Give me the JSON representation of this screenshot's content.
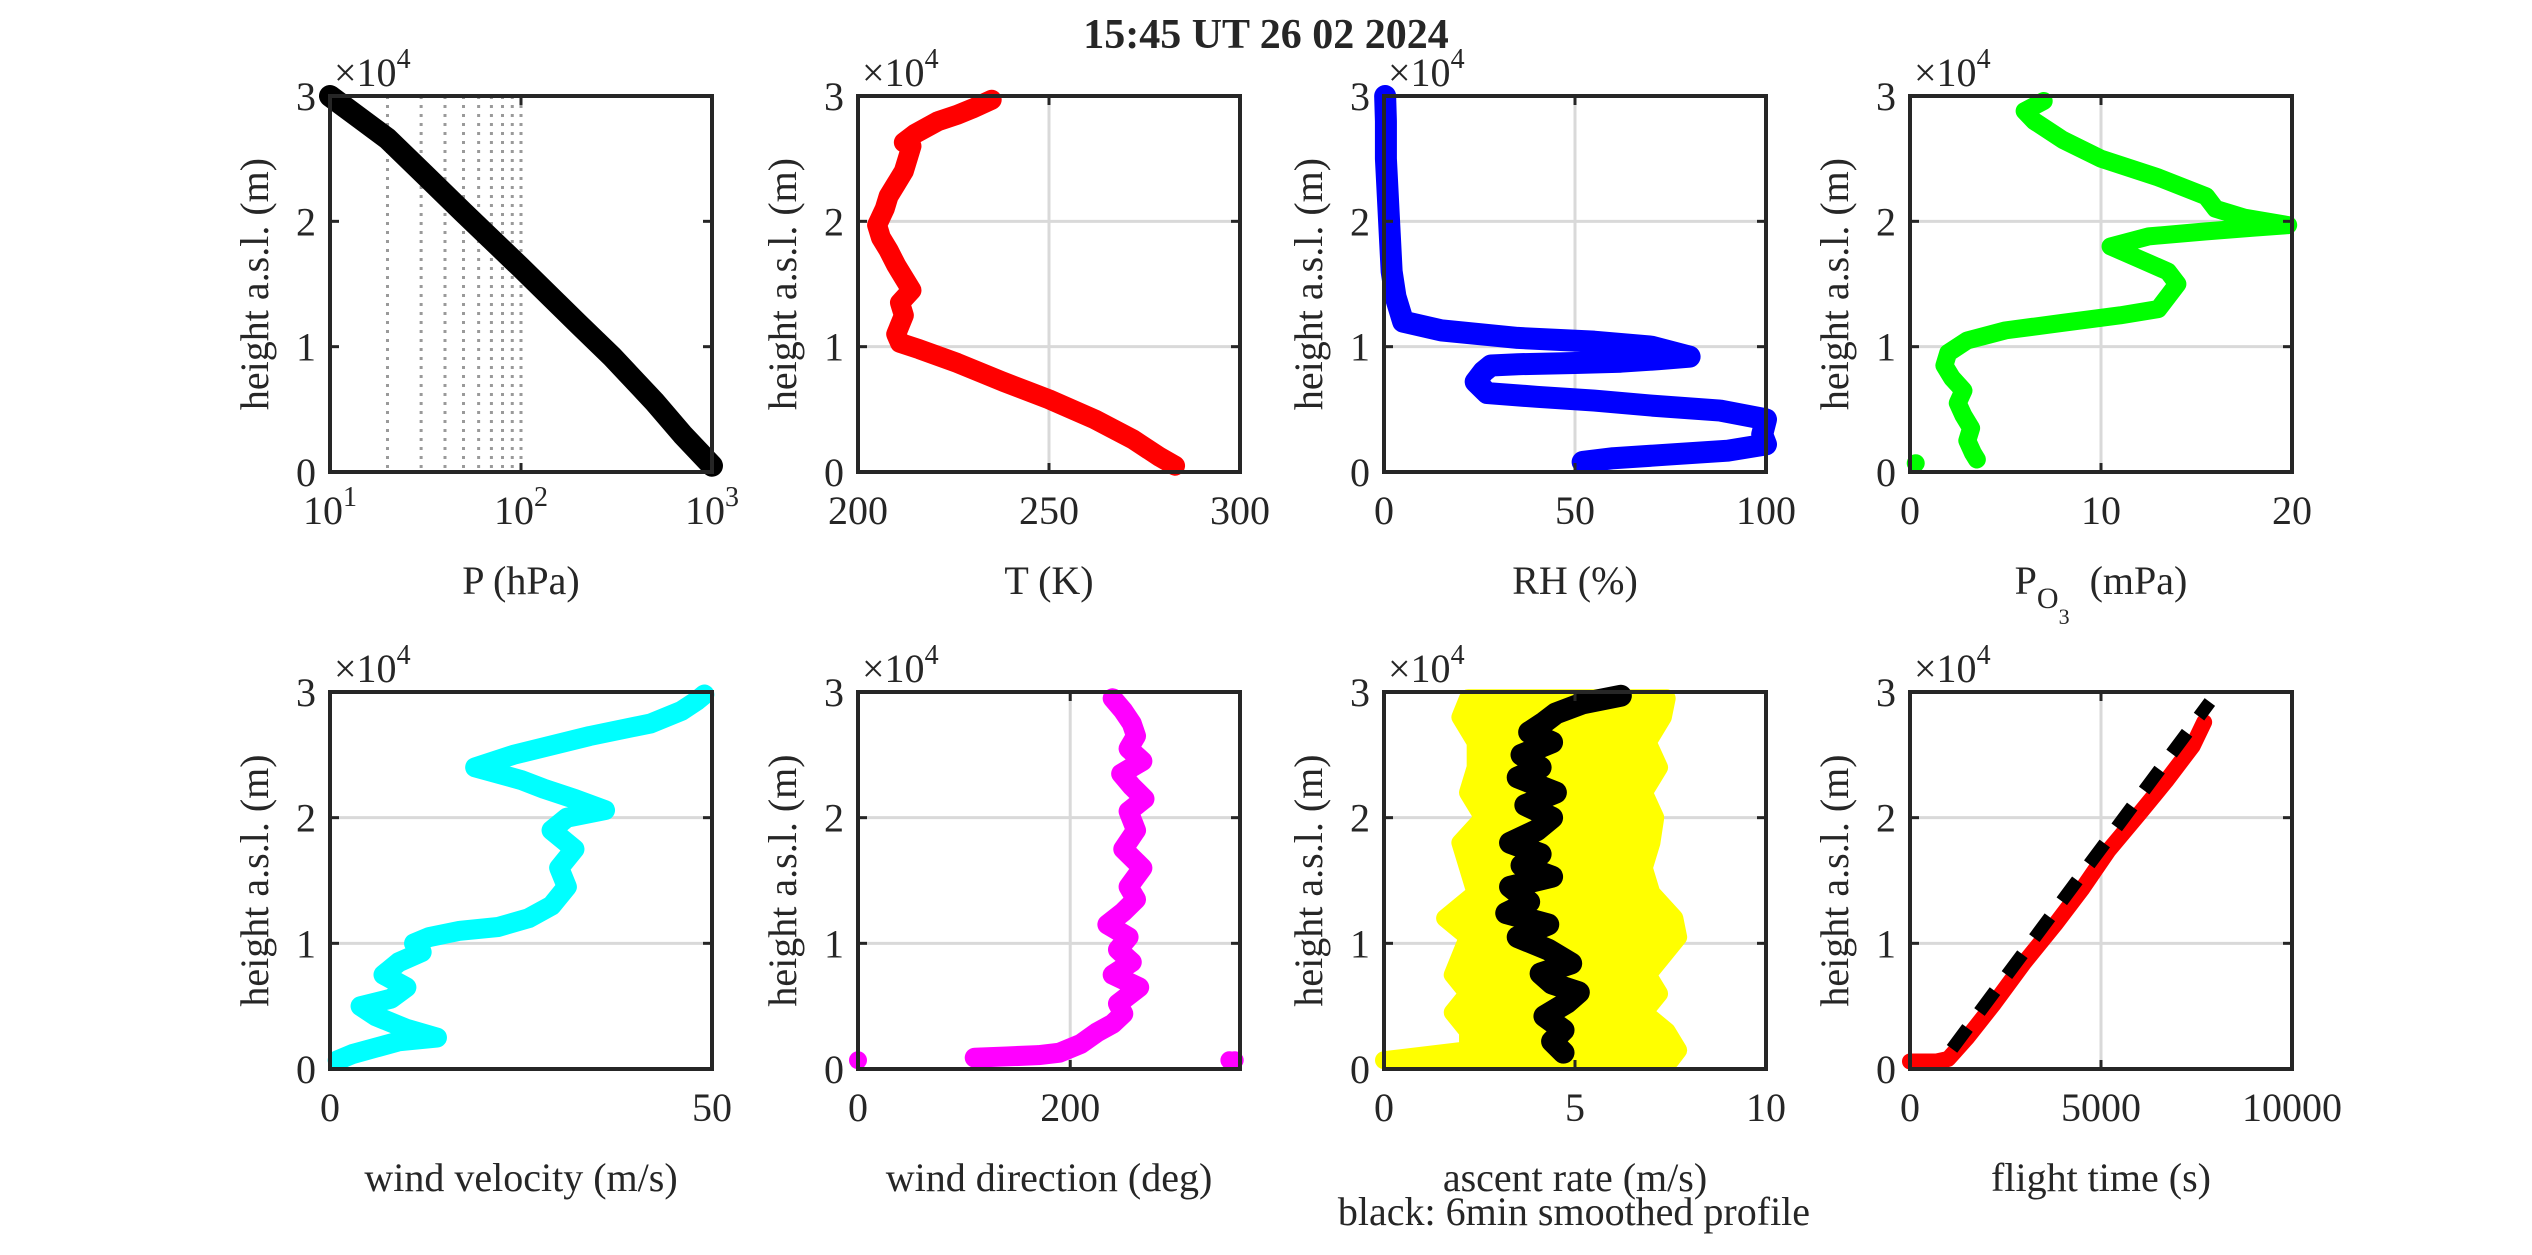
{
  "figure": {
    "title": "15:45 UT  26 02 2024",
    "footnote": "black: 6min smoothed profile"
  },
  "chart_data": [
    {
      "id": "pressure",
      "type": "line",
      "xlabel": "P (hPa)",
      "ylabel": "height a.s.l. (m)",
      "xscale": "log",
      "xlim": [
        10,
        1000
      ],
      "ylim": [
        0,
        30000
      ],
      "xticks": [
        10,
        100,
        1000
      ],
      "xtick_labels": [
        {
          "base": "10",
          "exp": "1"
        },
        {
          "base": "10",
          "exp": "2"
        },
        {
          "base": "10",
          "exp": "3"
        }
      ],
      "yticks": [
        0,
        10000,
        20000,
        30000
      ],
      "ytick_labels": [
        "0",
        "1",
        "2",
        "3"
      ],
      "y_exponent": "4",
      "grid": "log-dotted",
      "series": [
        {
          "color": "#000000",
          "kind": "line",
          "width": 22,
          "x": [
            1000,
            700,
            500,
            300,
            200,
            100,
            50,
            30,
            20,
            10
          ],
          "y": [
            500,
            3000,
            5600,
            9200,
            11800,
            16300,
            20700,
            24000,
            26600,
            30000
          ]
        }
      ]
    },
    {
      "id": "temperature",
      "type": "line",
      "xlabel": "T (K)",
      "ylabel": "height a.s.l. (m)",
      "xlim": [
        200,
        300
      ],
      "ylim": [
        0,
        30000
      ],
      "xticks": [
        200,
        250,
        300
      ],
      "xtick_labels": [
        "200",
        "250",
        "300"
      ],
      "yticks": [
        0,
        10000,
        20000,
        30000
      ],
      "ytick_labels": [
        "0",
        "1",
        "2",
        "3"
      ],
      "y_exponent": "4",
      "grid": "solid",
      "series": [
        {
          "color": "#ff0000",
          "kind": "line",
          "width": 20,
          "x": [
            283,
            279,
            272,
            262,
            250,
            238,
            226,
            216,
            211,
            210,
            212,
            211,
            214,
            212,
            210,
            208,
            206,
            205,
            207,
            208,
            210,
            212,
            213,
            214,
            212,
            215,
            221,
            226,
            230,
            235
          ],
          "y": [
            500,
            1200,
            2600,
            4200,
            5800,
            7200,
            8700,
            9800,
            10300,
            11000,
            12500,
            13500,
            14500,
            15500,
            16500,
            17700,
            18700,
            19700,
            21000,
            22000,
            23000,
            24000,
            25000,
            26000,
            26300,
            27000,
            28000,
            28500,
            29000,
            29700
          ]
        }
      ]
    },
    {
      "id": "humidity",
      "type": "line",
      "xlabel": "RH (%)",
      "ylabel": "height a.s.l. (m)",
      "xlim": [
        0,
        100
      ],
      "ylim": [
        0,
        30000
      ],
      "xticks": [
        0,
        50,
        100
      ],
      "xtick_labels": [
        "0",
        "50",
        "100"
      ],
      "yticks": [
        0,
        10000,
        20000,
        30000
      ],
      "ytick_labels": [
        "0",
        "1",
        "2",
        "3"
      ],
      "y_exponent": "4",
      "grid": "solid",
      "series": [
        {
          "color": "#0000ff",
          "kind": "line",
          "width": 22,
          "x": [
            52,
            60,
            75,
            90,
            100,
            99,
            100,
            88,
            70,
            55,
            40,
            27,
            24,
            26,
            28,
            35,
            50,
            62,
            72,
            80,
            70,
            55,
            35,
            15,
            5,
            3,
            2,
            1.5,
            1,
            0.5,
            0.5,
            0.3
          ],
          "y": [
            800,
            1100,
            1400,
            1700,
            2200,
            3000,
            4200,
            4900,
            5300,
            5700,
            6000,
            6300,
            7200,
            8000,
            8500,
            8600,
            8700,
            8800,
            9000,
            9200,
            10000,
            10400,
            10700,
            11300,
            12000,
            14000,
            16000,
            19000,
            22000,
            25000,
            28000,
            30000
          ]
        }
      ]
    },
    {
      "id": "ozone",
      "type": "line",
      "xlabel": {
        "main": "P",
        "sub": "O",
        "subsub": "3",
        "unit": "(mPa)"
      },
      "ylabel": "height a.s.l. (m)",
      "xlim": [
        0,
        20
      ],
      "ylim": [
        0,
        30000
      ],
      "xticks": [
        0,
        10,
        20
      ],
      "xtick_labels": [
        "0",
        "10",
        "20"
      ],
      "yticks": [
        0,
        10000,
        20000,
        30000
      ],
      "ytick_labels": [
        "0",
        "1",
        "2",
        "3"
      ],
      "y_exponent": "4",
      "grid": "solid",
      "series": [
        {
          "color": "#00ff00",
          "kind": "line",
          "width": 18,
          "x": [
            3.5,
            3.3,
            3.0,
            3.2,
            2.8,
            2.5,
            2.8,
            2.2,
            1.8,
            2.0,
            3.0,
            5.0,
            8.0,
            11.0,
            13.0,
            13.5,
            14.0,
            13.5,
            12.0,
            10.5,
            12.5,
            15.5,
            18.0,
            19.8,
            17.5,
            16.0,
            15.5,
            13.0,
            10.0,
            8.0,
            6.5,
            6.0,
            7.0
          ],
          "y": [
            1000,
            1500,
            2500,
            3500,
            4500,
            5500,
            6500,
            7500,
            8500,
            9500,
            10500,
            11300,
            11900,
            12500,
            13000,
            14000,
            15000,
            16000,
            17000,
            18000,
            18800,
            19200,
            19500,
            19700,
            20300,
            21000,
            22000,
            23500,
            25000,
            26500,
            28000,
            28800,
            29600
          ]
        },
        {
          "color": "#00ff00",
          "kind": "points",
          "radius": 9,
          "x": [
            0.3
          ],
          "y": [
            700
          ]
        }
      ]
    },
    {
      "id": "wind-velocity",
      "type": "line",
      "xlabel": "wind velocity (m/s)",
      "ylabel": "height a.s.l. (m)",
      "xlim": [
        0,
        50
      ],
      "ylim": [
        0,
        30000
      ],
      "xticks": [
        0,
        50
      ],
      "xtick_labels": [
        "0",
        "50"
      ],
      "yticks": [
        0,
        10000,
        20000,
        30000
      ],
      "ytick_labels": [
        "0",
        "1",
        "2",
        "3"
      ],
      "y_exponent": "4",
      "grid": "solid",
      "series": [
        {
          "color": "#00ffff",
          "kind": "line",
          "width": 20,
          "x": [
            1,
            3,
            6,
            9,
            14,
            10,
            6,
            4,
            8,
            10,
            7,
            9,
            12,
            11,
            13,
            17,
            22,
            26,
            29,
            31,
            30,
            32,
            29,
            31,
            36,
            32,
            28,
            25,
            19,
            24,
            34,
            42,
            46,
            48,
            49
          ],
          "y": [
            700,
            1200,
            1700,
            2200,
            2500,
            3200,
            4200,
            5000,
            5600,
            6500,
            7500,
            8500,
            9300,
            10000,
            10500,
            11000,
            11300,
            12000,
            13000,
            14500,
            16000,
            17500,
            19000,
            20000,
            20600,
            21500,
            22300,
            23000,
            24000,
            25000,
            26500,
            27500,
            28500,
            29300,
            29800
          ]
        }
      ]
    },
    {
      "id": "wind-direction",
      "type": "line",
      "xlabel": "wind direction (deg)",
      "ylabel": "height a.s.l. (m)",
      "xlim": [
        0,
        360
      ],
      "ylim": [
        0,
        30000
      ],
      "xticks": [
        0,
        200
      ],
      "xtick_labels": [
        "0",
        "200"
      ],
      "yticks": [
        0,
        10000,
        20000,
        30000
      ],
      "ytick_labels": [
        "0",
        "1",
        "2",
        "3"
      ],
      "y_exponent": "4",
      "grid": "solid",
      "series": [
        {
          "color": "#ff00ff",
          "kind": "line",
          "width": 20,
          "x": [
            110,
            140,
            170,
            190,
            210,
            225,
            240,
            250,
            245,
            265,
            240,
            258,
            245,
            255,
            235,
            250,
            262,
            255,
            268,
            250,
            262,
            255,
            270,
            258,
            248,
            268,
            255,
            262,
            258,
            250,
            240
          ],
          "y": [
            900,
            1000,
            1100,
            1300,
            2000,
            2900,
            3600,
            4400,
            5200,
            6500,
            7500,
            8500,
            9500,
            10500,
            11500,
            12500,
            13500,
            14500,
            16000,
            17500,
            19000,
            20500,
            21500,
            22500,
            23500,
            24500,
            25500,
            26500,
            27500,
            28500,
            29500
          ]
        },
        {
          "color": "#ff00ff",
          "kind": "points",
          "radius": 9,
          "x": [
            0,
            355,
            350
          ],
          "y": [
            700,
            700,
            700
          ]
        }
      ]
    },
    {
      "id": "ascent-rate",
      "type": "line",
      "xlabel": "ascent rate (m/s)",
      "ylabel": "height a.s.l. (m)",
      "xlim": [
        0,
        10
      ],
      "ylim": [
        0,
        30000
      ],
      "xticks": [
        0,
        5,
        10
      ],
      "xtick_labels": [
        "0",
        "5",
        "10"
      ],
      "yticks": [
        0,
        10000,
        20000,
        30000
      ],
      "ytick_labels": [
        "0",
        "1",
        "2",
        "3"
      ],
      "y_exponent": "4",
      "grid": "solid",
      "bands": [
        {
          "color": "#ffff00",
          "y": [
            700,
            1500,
            3000,
            4500,
            6000,
            7500,
            9000,
            10500,
            12000,
            14000,
            16000,
            18000,
            20000,
            22000,
            24000,
            26000,
            28000,
            29500
          ],
          "left": [
            0.0,
            2.2,
            2.2,
            1.8,
            2.2,
            1.8,
            2.0,
            2.2,
            1.6,
            2.4,
            2.2,
            2.0,
            2.6,
            2.2,
            2.4,
            2.4,
            2.0,
            2.2
          ],
          "right": [
            7.5,
            7.7,
            7.4,
            6.8,
            7.2,
            6.9,
            7.3,
            7.7,
            7.6,
            7.0,
            6.8,
            7.0,
            7.1,
            6.8,
            7.2,
            6.9,
            7.3,
            7.4
          ]
        }
      ],
      "series": [
        {
          "color": "#000000",
          "kind": "line",
          "width": 22,
          "x": [
            4.7,
            4.4,
            4.7,
            4.2,
            4.8,
            5.1,
            4.4,
            4.1,
            4.9,
            4.3,
            3.5,
            4.3,
            3.2,
            3.8,
            3.3,
            4.4,
            3.6,
            4.1,
            3.3,
            4.0,
            4.4,
            3.7,
            4.5,
            3.5,
            4.1,
            3.6,
            4.4,
            3.8,
            4.2,
            4.5,
            5.2,
            6.2
          ],
          "y": [
            1300,
            2200,
            3100,
            4200,
            5300,
            6100,
            6800,
            7600,
            8400,
            9500,
            10500,
            11500,
            12400,
            13300,
            14500,
            15300,
            16200,
            17100,
            18000,
            19000,
            20000,
            21000,
            22000,
            23200,
            24000,
            25000,
            26000,
            26800,
            27600,
            28300,
            29100,
            29700
          ]
        }
      ]
    },
    {
      "id": "flight-time",
      "type": "line",
      "xlabel": "flight time (s)",
      "ylabel": "height a.s.l. (m)",
      "xlim": [
        0,
        10000
      ],
      "ylim": [
        0,
        30000
      ],
      "xticks": [
        0,
        5000,
        10000
      ],
      "xtick_labels": [
        "0",
        "5000",
        "10000"
      ],
      "yticks": [
        0,
        10000,
        20000,
        30000
      ],
      "ytick_labels": [
        "0",
        "1",
        "2",
        "3"
      ],
      "y_exponent": "4",
      "grid": "solid",
      "series": [
        {
          "color": "#ff0000",
          "kind": "line",
          "width": 16,
          "x": [
            0,
            700,
            1000,
            1500,
            2200,
            3000,
            3800,
            4500,
            5200,
            6000,
            6700,
            7400,
            7700
          ],
          "y": [
            600,
            600,
            800,
            2500,
            5200,
            8500,
            11500,
            14300,
            17400,
            20300,
            22900,
            25700,
            27600
          ]
        },
        {
          "color": "#000000",
          "kind": "line",
          "width": 13,
          "dash": "26 20",
          "x": [
            1100,
            7850
          ],
          "y": [
            1600,
            29200
          ]
        }
      ]
    }
  ]
}
